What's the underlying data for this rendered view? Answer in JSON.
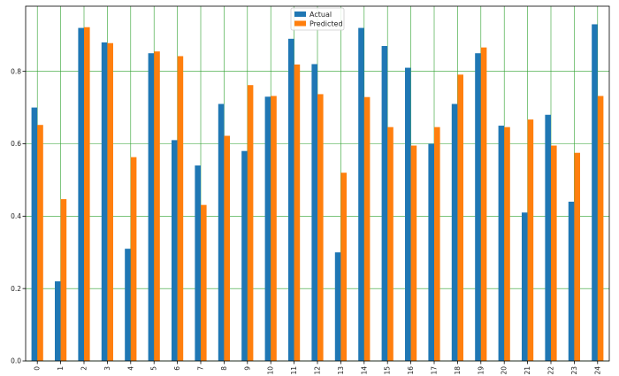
{
  "chart_data": {
    "type": "bar",
    "title": "",
    "xlabel": "",
    "ylabel": "",
    "categories": [
      "0",
      "1",
      "2",
      "3",
      "4",
      "5",
      "6",
      "7",
      "8",
      "9",
      "10",
      "11",
      "12",
      "13",
      "14",
      "15",
      "16",
      "17",
      "18",
      "19",
      "20",
      "21",
      "22",
      "23",
      "24"
    ],
    "series": [
      {
        "name": "Actual",
        "color": "#1f77b4",
        "values": [
          0.7,
          0.22,
          0.92,
          0.88,
          0.31,
          0.85,
          0.61,
          0.54,
          0.71,
          0.58,
          0.73,
          0.89,
          0.82,
          0.3,
          0.92,
          0.87,
          0.81,
          0.6,
          0.71,
          0.85,
          0.65,
          0.41,
          0.68,
          0.44,
          0.93
        ]
      },
      {
        "name": "Predicted",
        "color": "#ff7f0e",
        "values": [
          0.652,
          0.447,
          0.922,
          0.878,
          0.563,
          0.855,
          0.842,
          0.431,
          0.622,
          0.762,
          0.732,
          0.819,
          0.737,
          0.52,
          0.729,
          0.646,
          0.595,
          0.646,
          0.791,
          0.866,
          0.646,
          0.667,
          0.595,
          0.575,
          0.732
        ]
      }
    ],
    "ylim": [
      0,
      0.98
    ],
    "yticks": [
      "0.0",
      "0.2",
      "0.4",
      "0.6",
      "0.8"
    ],
    "ytick_values": [
      0,
      0.2,
      0.4,
      0.6,
      0.8
    ],
    "grid": true,
    "grid_color": "#2ca02c",
    "legend_position": "top-center",
    "xtick_rotation": "vertical"
  }
}
